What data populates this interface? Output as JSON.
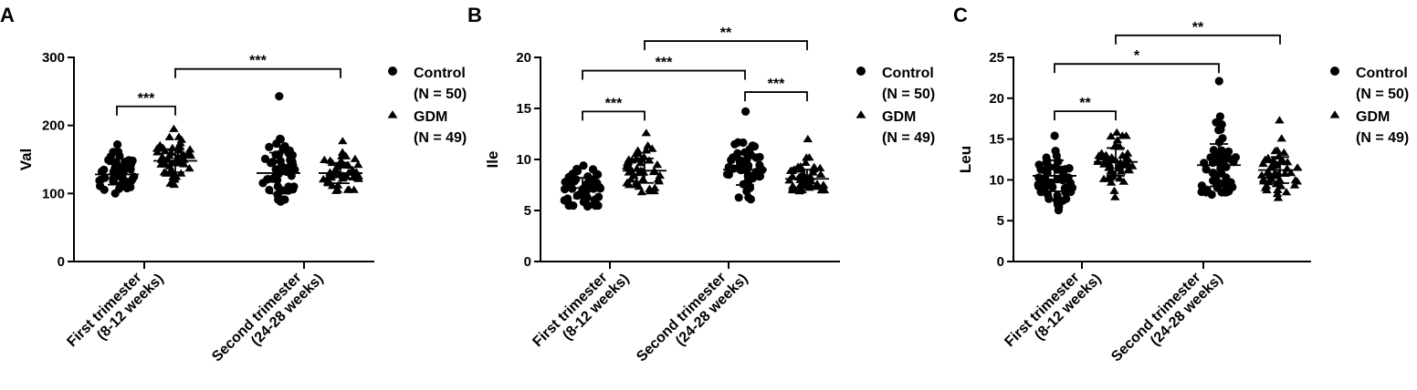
{
  "chart_data": [
    {
      "type": "scatter",
      "panel": "A",
      "ylabel": "Val",
      "ylim": [
        0,
        300
      ],
      "yticks": [
        "0",
        "100",
        "200",
        "300"
      ],
      "categories": [
        {
          "line1": "First trimester",
          "line2": "(8-12 weeks)"
        },
        {
          "line1": "Second trimester",
          "line2": "(24-28 weeks)"
        }
      ],
      "legend": [
        {
          "label": "Control",
          "sub": "(N = 50)",
          "marker": "circle"
        },
        {
          "label": "GDM",
          "sub": "(N = 49)",
          "marker": "triangle"
        }
      ],
      "series": [
        {
          "name": "Control",
          "group": "First trimester",
          "marker": "circle",
          "n": 50,
          "mean": 128,
          "sd": 15,
          "min": 100,
          "max": 172
        },
        {
          "name": "GDM",
          "group": "First trimester",
          "marker": "triangle",
          "n": 49,
          "mean": 148,
          "sd": 17,
          "min": 113,
          "max": 195
        },
        {
          "name": "Control",
          "group": "Second trimester",
          "marker": "circle",
          "n": 50,
          "mean": 130,
          "sd": 30,
          "min": 88,
          "max": 243
        },
        {
          "name": "GDM",
          "group": "Second trimester",
          "marker": "triangle",
          "n": 49,
          "mean": 130,
          "sd": 15,
          "min": 104,
          "max": 177
        }
      ],
      "significance": [
        {
          "from": 0,
          "to": 1,
          "label": "***",
          "y": 228
        },
        {
          "from": 1,
          "to": 3,
          "label": "***",
          "y": 283
        }
      ]
    },
    {
      "type": "scatter",
      "panel": "B",
      "ylabel": "Ile",
      "ylim": [
        0,
        20
      ],
      "yticks": [
        "0",
        "5",
        "10",
        "15",
        "20"
      ],
      "categories": [
        {
          "line1": "First trimester",
          "line2": "(8-12 weeks)"
        },
        {
          "line1": "Second trimester",
          "line2": "(24-28 weeks)"
        }
      ],
      "legend": [
        {
          "label": "Control",
          "sub": "(N = 50)",
          "marker": "circle"
        },
        {
          "label": "GDM",
          "sub": "(N = 49)",
          "marker": "triangle"
        }
      ],
      "series": [
        {
          "name": "Control",
          "group": "First trimester",
          "marker": "circle",
          "n": 50,
          "mean": 7.2,
          "sd": 1.0,
          "min": 5.4,
          "max": 9.4
        },
        {
          "name": "GDM",
          "group": "First trimester",
          "marker": "triangle",
          "n": 49,
          "mean": 8.9,
          "sd": 1.2,
          "min": 6.8,
          "max": 12.6
        },
        {
          "name": "Control",
          "group": "Second trimester",
          "marker": "circle",
          "n": 50,
          "mean": 9.0,
          "sd": 1.5,
          "min": 6.1,
          "max": 14.7
        },
        {
          "name": "GDM",
          "group": "Second trimester",
          "marker": "triangle",
          "n": 49,
          "mean": 8.1,
          "sd": 0.9,
          "min": 6.9,
          "max": 12.0
        }
      ],
      "significance": [
        {
          "from": 0,
          "to": 1,
          "label": "***",
          "y": 14.7
        },
        {
          "from": 0,
          "to": 2,
          "label": "***",
          "y": 18.7
        },
        {
          "from": 2,
          "to": 3,
          "label": "***",
          "y": 16.6
        },
        {
          "from": 1,
          "to": 3,
          "label": "**",
          "y": 21.6
        }
      ]
    },
    {
      "type": "scatter",
      "panel": "C",
      "ylabel": "Leu",
      "ylim": [
        0,
        25
      ],
      "yticks": [
        "0",
        "5",
        "10",
        "15",
        "20",
        "25"
      ],
      "categories": [
        {
          "line1": "First trimester",
          "line2": "(8-12 weeks)"
        },
        {
          "line1": "Second trimester",
          "line2": "(24-28 weeks)"
        }
      ],
      "legend": [
        {
          "label": "Control",
          "sub": "(N = 50)",
          "marker": "circle"
        },
        {
          "label": "GDM",
          "sub": "(N = 49)",
          "marker": "triangle"
        }
      ],
      "series": [
        {
          "name": "Control",
          "group": "First trimester",
          "marker": "circle",
          "n": 50,
          "mean": 10.5,
          "sd": 1.9,
          "min": 6.3,
          "max": 15.4
        },
        {
          "name": "GDM",
          "group": "First trimester",
          "marker": "triangle",
          "n": 49,
          "mean": 12.2,
          "sd": 1.7,
          "min": 7.9,
          "max": 15.8
        },
        {
          "name": "Control",
          "group": "Second trimester",
          "marker": "circle",
          "n": 50,
          "mean": 11.8,
          "sd": 2.6,
          "min": 8.2,
          "max": 22.1
        },
        {
          "name": "GDM",
          "group": "Second trimester",
          "marker": "triangle",
          "n": 49,
          "mean": 11.2,
          "sd": 1.6,
          "min": 7.8,
          "max": 17.3
        }
      ],
      "significance": [
        {
          "from": 0,
          "to": 1,
          "label": "**",
          "y": 18.4
        },
        {
          "from": 0,
          "to": 2,
          "label": "*",
          "y": 24.2
        },
        {
          "from": 1,
          "to": 3,
          "label": "**",
          "y": 27.7
        }
      ]
    }
  ]
}
